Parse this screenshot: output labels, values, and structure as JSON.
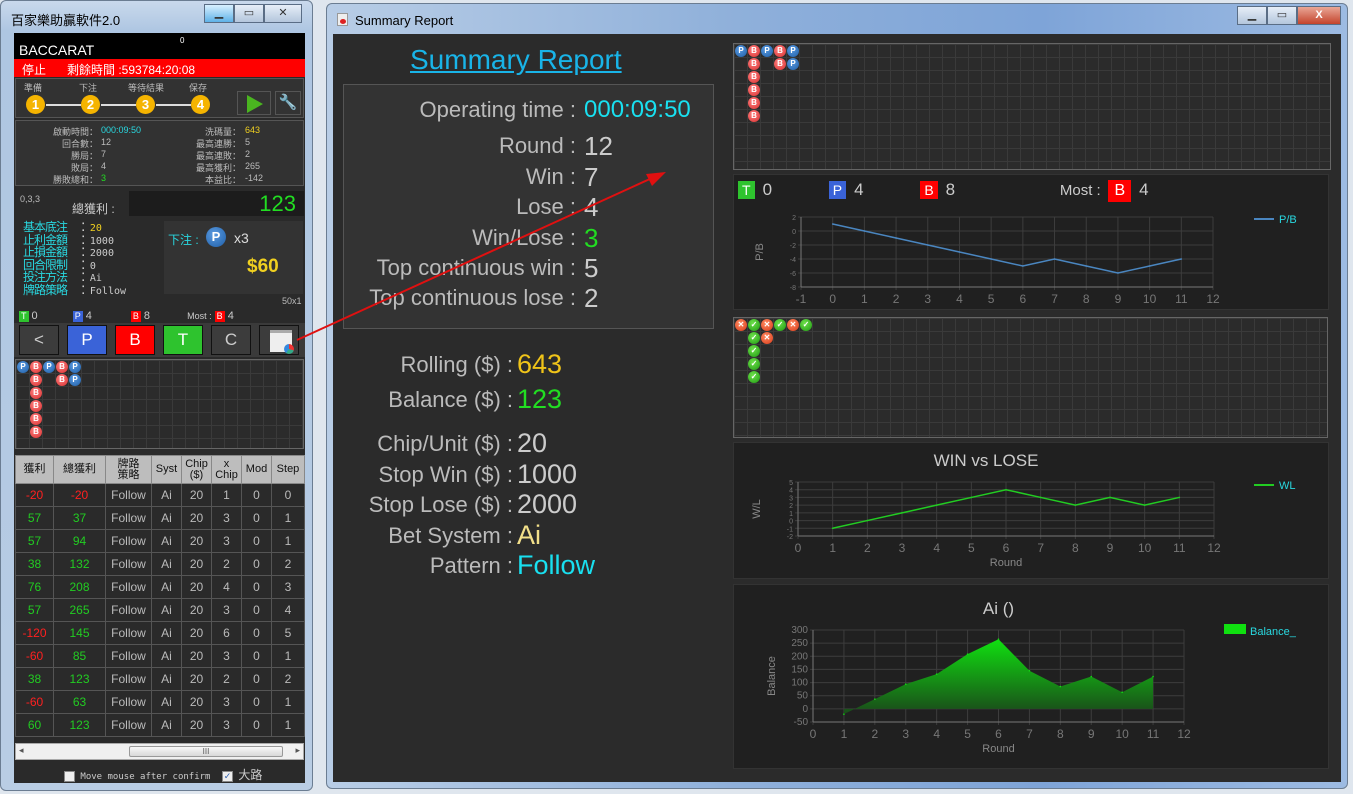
{
  "left_window": {
    "title": "百家樂助贏軟件2.0",
    "game": "BACCARAT",
    "counter": "0",
    "status": "停止",
    "remaining_time": "剩餘時間 :593784:20:08",
    "steps": [
      {
        "n": "1",
        "label": "準備"
      },
      {
        "n": "2",
        "label": "下注"
      },
      {
        "n": "3",
        "label": "等待結果"
      },
      {
        "n": "4",
        "label": "保存"
      }
    ],
    "stats_left": [
      {
        "k": "啟動時間：",
        "v": "000:09:50"
      },
      {
        "k": "回合數：",
        "v": "12"
      },
      {
        "k": "勝局：",
        "v": "7"
      },
      {
        "k": "敗局：",
        "v": "4"
      },
      {
        "k": "勝敗總和：",
        "v": "3"
      }
    ],
    "stats_right": [
      {
        "k": "洗碼量：",
        "v": "643"
      },
      {
        "k": "最高連勝：",
        "v": "5"
      },
      {
        "k": "最高連敗：",
        "v": "2"
      },
      {
        "k": "最高獲利：",
        "v": "265"
      },
      {
        "k": "本益比：",
        "v": "-142"
      }
    ],
    "code": "0,3,3",
    "total_profit_label": "總獲利 :",
    "total_profit": "123",
    "settings": [
      {
        "k": "基本底注",
        "v": "20"
      },
      {
        "k": "止利金額",
        "v": "1000"
      },
      {
        "k": "止損金額",
        "v": "2000"
      },
      {
        "k": "回合限制",
        "v": "0"
      },
      {
        "k": "投注方法",
        "v": "Ai"
      },
      {
        "k": "牌路策略",
        "v": "Follow"
      }
    ],
    "bet_label": "下注 :",
    "bet_side": "P",
    "bet_mult": "x3",
    "bet_amount": "$60",
    "ratio": "50x1",
    "counts": {
      "T": "0",
      "P": "4",
      "B": "8",
      "most_label": "Most :",
      "most_side": "B",
      "most_val": "4"
    },
    "buttons": {
      "back": "<",
      "p": "P",
      "b": "B",
      "t": "T",
      "c": "C"
    },
    "table": {
      "headers": [
        "獲利",
        "總獲利",
        "牌路\n策略",
        "Syst",
        "Chip\n($)",
        "x\nChip",
        "Mod",
        "Step"
      ],
      "rows": [
        [
          "-20",
          "-20",
          "Follow",
          "Ai",
          "20",
          "1",
          "0",
          "0"
        ],
        [
          "57",
          "37",
          "Follow",
          "Ai",
          "20",
          "3",
          "0",
          "1"
        ],
        [
          "57",
          "94",
          "Follow",
          "Ai",
          "20",
          "3",
          "0",
          "1"
        ],
        [
          "38",
          "132",
          "Follow",
          "Ai",
          "20",
          "2",
          "0",
          "2"
        ],
        [
          "76",
          "208",
          "Follow",
          "Ai",
          "20",
          "4",
          "0",
          "3"
        ],
        [
          "57",
          "265",
          "Follow",
          "Ai",
          "20",
          "3",
          "0",
          "4"
        ],
        [
          "-120",
          "145",
          "Follow",
          "Ai",
          "20",
          "6",
          "0",
          "5"
        ],
        [
          "-60",
          "85",
          "Follow",
          "Ai",
          "20",
          "3",
          "0",
          "1"
        ],
        [
          "38",
          "123",
          "Follow",
          "Ai",
          "20",
          "2",
          "0",
          "2"
        ],
        [
          "-60",
          "63",
          "Follow",
          "Ai",
          "20",
          "3",
          "0",
          "1"
        ],
        [
          "60",
          "123",
          "Follow",
          "Ai",
          "20",
          "3",
          "0",
          "1"
        ]
      ]
    },
    "move_mouse_label": "Move mouse after confirm",
    "move_mouse_checked": false,
    "big_road_label": "大路",
    "big_road_checked": true
  },
  "big_road": [
    [
      "P"
    ],
    [
      "B",
      "B",
      "B",
      "B",
      "B",
      "B"
    ],
    [
      "P"
    ],
    [
      "B",
      "B"
    ],
    [
      "P",
      "P"
    ]
  ],
  "wl_road": [
    [
      "L"
    ],
    [
      "W",
      "W",
      "W",
      "W",
      "W"
    ],
    [
      "L",
      "L"
    ],
    [
      "W"
    ],
    [
      "L"
    ],
    [
      "W"
    ]
  ],
  "report": {
    "window_title": "Summary Report",
    "heading": "Summary Report",
    "stats": [
      {
        "k": "Operating time :",
        "v": "000:09:50",
        "c": "#19e0f0"
      },
      {
        "k": "Round :",
        "v": "12",
        "c": "#cccccc"
      },
      {
        "k": "Win :",
        "v": "7",
        "c": "#cccccc"
      },
      {
        "k": "Lose :",
        "v": "4",
        "c": "#cccccc"
      },
      {
        "k": "Win/Lose :",
        "v": "3",
        "c": "#22dd22"
      },
      {
        "k": "Top continuous win :",
        "v": "5",
        "c": "#cccccc"
      },
      {
        "k": "Top continuous lose :",
        "v": "2",
        "c": "#cccccc"
      }
    ],
    "money": [
      {
        "k": "Rolling ($) :",
        "v": "643",
        "c": "#f0c419"
      },
      {
        "k": "Balance ($) :",
        "v": "123",
        "c": "#22dd22"
      }
    ],
    "settings": [
      {
        "k": "Chip/Unit ($) :",
        "v": "20",
        "c": "#cccccc"
      },
      {
        "k": "Stop Win ($) :",
        "v": "1000",
        "c": "#cccccc"
      },
      {
        "k": "Stop Lose ($) :",
        "v": "2000",
        "c": "#cccccc"
      },
      {
        "k": "Bet System :",
        "v": "Ai",
        "c": "#f3e08a"
      },
      {
        "k": "Pattern :",
        "v": "Follow",
        "c": "#19e0f0"
      }
    ],
    "counts": {
      "T": "0",
      "P": "4",
      "B": "8",
      "most_label": "Most :",
      "most_side": "B",
      "most_val": "4"
    }
  },
  "colors": {
    "player": "#3a63d8",
    "banker": "#ff0000",
    "tie": "#2ec32e",
    "accent": "#19c0f0"
  },
  "chart_data": [
    {
      "type": "line",
      "title": "",
      "xlabel": "Round",
      "ylabel": "P/B",
      "xlim": [
        -1,
        12
      ],
      "ylim": [
        -8,
        2
      ],
      "xticks": [
        -1,
        0,
        1,
        2,
        3,
        4,
        5,
        6,
        7,
        8,
        9,
        10,
        11,
        12
      ],
      "yticks": [
        2,
        0,
        -2,
        -4,
        -6,
        -8
      ],
      "grid": true,
      "legend": "top-right",
      "series": [
        {
          "name": "P/B",
          "color": "#4a86c0",
          "x": [
            0,
            1,
            2,
            3,
            4,
            5,
            6,
            7,
            8,
            9,
            10,
            11
          ],
          "y": [
            1,
            0,
            -1,
            -2,
            -3,
            -4,
            -5,
            -4,
            -5,
            -6,
            -5,
            -4
          ]
        }
      ]
    },
    {
      "type": "line",
      "title": "WIN vs LOSE",
      "xlabel": "Round",
      "ylabel": "W/L",
      "xlim": [
        0,
        12
      ],
      "ylim": [
        -2,
        5
      ],
      "xticks": [
        0,
        1,
        2,
        3,
        4,
        5,
        6,
        7,
        8,
        9,
        10,
        11,
        12
      ],
      "yticks": [
        5,
        4,
        3,
        2,
        1,
        0,
        -1,
        -2
      ],
      "grid": true,
      "legend": "top-right",
      "series": [
        {
          "name": "WL",
          "color": "#22cc22",
          "x": [
            1,
            2,
            3,
            4,
            5,
            6,
            7,
            8,
            9,
            10,
            11
          ],
          "y": [
            -1,
            0,
            1,
            2,
            3,
            4,
            3,
            2,
            3,
            2,
            3
          ]
        }
      ]
    },
    {
      "type": "area",
      "title": "Ai ()",
      "xlabel": "Round",
      "ylabel": "Balance",
      "xlim": [
        0,
        12
      ],
      "ylim": [
        -50,
        300
      ],
      "xticks": [
        0,
        1,
        2,
        3,
        4,
        5,
        6,
        7,
        8,
        9,
        10,
        11,
        12
      ],
      "yticks": [
        300,
        250,
        200,
        150,
        100,
        50,
        0,
        -50
      ],
      "grid": true,
      "legend": "top-right",
      "series": [
        {
          "name": "Balance_",
          "color": "#10e010",
          "x": [
            1,
            2,
            3,
            4,
            5,
            6,
            7,
            8,
            9,
            10,
            11
          ],
          "y": [
            -20,
            37,
            94,
            132,
            208,
            265,
            145,
            85,
            123,
            63,
            123
          ]
        }
      ]
    }
  ]
}
